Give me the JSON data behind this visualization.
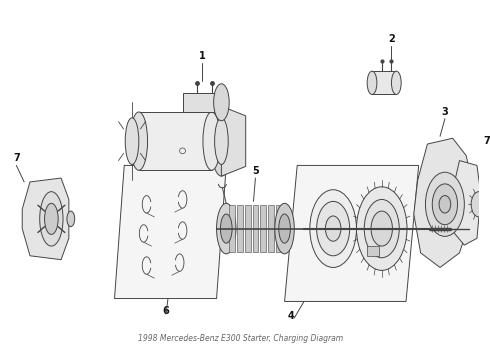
{
  "title": "1998 Mercedes-Benz E300 Starter, Charging Diagram",
  "bg_color": "#ffffff",
  "line_color": "#444444",
  "label_color": "#111111",
  "fig_width": 4.9,
  "fig_height": 3.6,
  "dpi": 100
}
